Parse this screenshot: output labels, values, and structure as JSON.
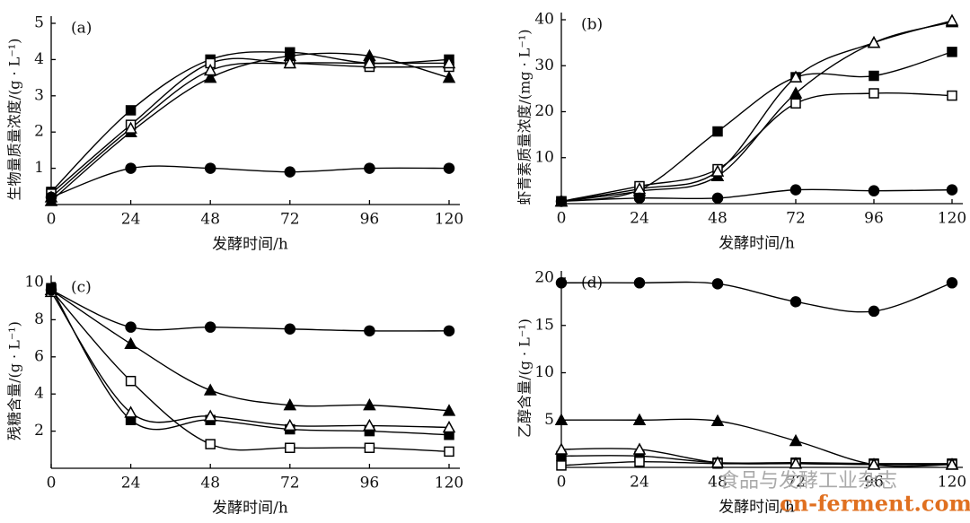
{
  "chart_data": [
    {
      "type": "line",
      "panel_label": "(a)",
      "x_label": "发酵时间/h",
      "y_label": "生物量质量浓度/(g · L⁻¹)",
      "x": [
        0,
        24,
        48,
        72,
        96,
        120
      ],
      "xlim": [
        0,
        120
      ],
      "xticks": [
        0,
        24,
        48,
        72,
        96,
        120
      ],
      "ylim": [
        0,
        5
      ],
      "yticks": [
        1,
        2,
        3,
        4,
        5
      ],
      "series": [
        {
          "color": "#000000",
          "marker": "square",
          "filled": true,
          "values": [
            0.35,
            2.6,
            4.0,
            4.2,
            3.9,
            4.0
          ]
        },
        {
          "color": "#000000",
          "marker": "square",
          "filled": false,
          "values": [
            0.3,
            2.2,
            3.9,
            3.9,
            3.8,
            3.8
          ]
        },
        {
          "color": "#000000",
          "marker": "triangle",
          "filled": true,
          "values": [
            0.1,
            2.0,
            3.5,
            4.1,
            4.1,
            3.5
          ]
        },
        {
          "color": "#000000",
          "marker": "triangle",
          "filled": false,
          "values": [
            0.2,
            2.1,
            3.7,
            3.9,
            3.9,
            3.9
          ]
        },
        {
          "color": "#000000",
          "marker": "circle",
          "filled": true,
          "values": [
            0.2,
            1.0,
            1.0,
            0.9,
            1.0,
            1.0
          ]
        }
      ]
    },
    {
      "type": "line",
      "panel_label": "(b)",
      "x_label": "发酵时间/h",
      "y_label": "虾青素质量浓度/(mg · L⁻¹)",
      "x": [
        0,
        24,
        48,
        72,
        96,
        120
      ],
      "xlim": [
        0,
        120
      ],
      "xticks": [
        0,
        24,
        48,
        72,
        96,
        120
      ],
      "ylim": [
        0,
        40
      ],
      "yticks": [
        10,
        20,
        30,
        40
      ],
      "series": [
        {
          "color": "#000000",
          "marker": "square",
          "filled": true,
          "values": [
            0.5,
            3,
            15.7,
            27.5,
            27.8,
            33
          ]
        },
        {
          "color": "#000000",
          "marker": "square",
          "filled": false,
          "values": [
            0.5,
            3.8,
            7.5,
            21.8,
            24,
            23.5
          ]
        },
        {
          "color": "#000000",
          "marker": "triangle",
          "filled": true,
          "values": [
            0.5,
            2.7,
            6,
            24,
            35,
            39.5
          ]
        },
        {
          "color": "#000000",
          "marker": "triangle",
          "filled": false,
          "values": [
            0.5,
            3.2,
            7,
            27.5,
            35,
            39.8
          ]
        },
        {
          "color": "#000000",
          "marker": "circle",
          "filled": true,
          "values": [
            0.5,
            1.2,
            1.2,
            3,
            2.8,
            3
          ]
        }
      ]
    },
    {
      "type": "line",
      "panel_label": "(c)",
      "x_label": "发酵时间/h",
      "y_label": "残糖含量/(g · L⁻¹)",
      "x": [
        0,
        24,
        48,
        72,
        96,
        120
      ],
      "xlim": [
        0,
        120
      ],
      "xticks": [
        0,
        24,
        48,
        72,
        96,
        120
      ],
      "ylim": [
        0,
        10
      ],
      "yticks": [
        2,
        4,
        6,
        8,
        10
      ],
      "series": [
        {
          "color": "#000000",
          "marker": "square",
          "filled": true,
          "values": [
            9.7,
            2.6,
            2.6,
            2.1,
            2.0,
            1.8
          ]
        },
        {
          "color": "#000000",
          "marker": "square",
          "filled": false,
          "values": [
            9.6,
            4.7,
            1.3,
            1.1,
            1.1,
            0.9
          ]
        },
        {
          "color": "#000000",
          "marker": "triangle",
          "filled": true,
          "values": [
            9.6,
            6.7,
            4.2,
            3.4,
            3.4,
            3.1
          ]
        },
        {
          "color": "#000000",
          "marker": "triangle",
          "filled": false,
          "values": [
            9.5,
            3.0,
            2.8,
            2.3,
            2.3,
            2.2
          ]
        },
        {
          "color": "#000000",
          "marker": "circle",
          "filled": true,
          "values": [
            9.6,
            7.6,
            7.6,
            7.5,
            7.4,
            7.4
          ]
        }
      ]
    },
    {
      "type": "line",
      "panel_label": "(d)",
      "x_label": "发酵时间/h",
      "y_label": "乙醇含量/(g · L⁻¹)",
      "x": [
        0,
        24,
        48,
        72,
        96,
        120
      ],
      "xlim": [
        0,
        120
      ],
      "xticks": [
        0,
        24,
        48,
        72,
        96,
        120
      ],
      "ylim": [
        0,
        20
      ],
      "yticks": [
        5,
        10,
        15,
        20
      ],
      "series": [
        {
          "color": "#000000",
          "marker": "square",
          "filled": true,
          "values": [
            1.2,
            1.2,
            0.5,
            0.5,
            0.4,
            0.4
          ]
        },
        {
          "color": "#000000",
          "marker": "square",
          "filled": false,
          "values": [
            0.2,
            0.6,
            0.4,
            0.4,
            0.3,
            0.3
          ]
        },
        {
          "color": "#000000",
          "marker": "triangle",
          "filled": true,
          "values": [
            5,
            5,
            4.9,
            2.8,
            0.3,
            0.3
          ]
        },
        {
          "color": "#000000",
          "marker": "triangle",
          "filled": false,
          "values": [
            1.9,
            1.9,
            0.5,
            0.4,
            0.3,
            0.3
          ]
        },
        {
          "color": "#000000",
          "marker": "circle",
          "filled": true,
          "values": [
            19.5,
            19.5,
            19.4,
            17.5,
            16.5,
            19.5
          ]
        }
      ]
    }
  ],
  "watermark": [
    "食品与发酵工业杂志",
    "cn-ferment.com"
  ]
}
